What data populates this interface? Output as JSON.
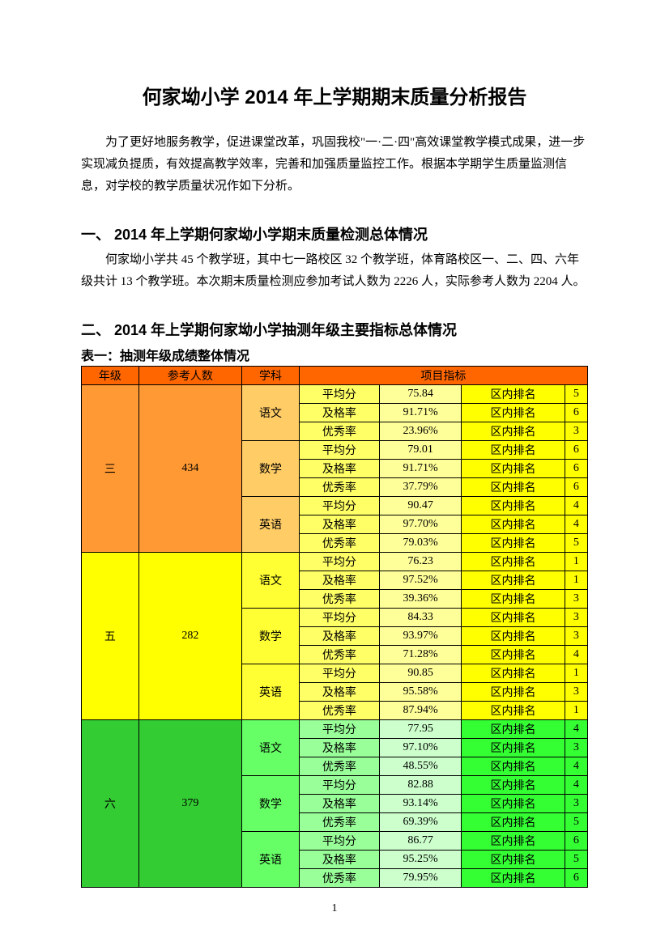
{
  "title": "何家坳小学 2014 年上学期期末质量分析报告",
  "intro": "为了更好地服务教学，促进课堂改革，巩固我校\"一·二·四\"高效课堂教学模式成果，进一步实现减负提质，有效提高教学效率，完善和加强质量监控工作。根据本学期学生质量监测信息，对学校的教学质量状况作如下分析。",
  "section1": {
    "heading": "一、 2014 年上学期何家坳小学期末质量检测总体情况",
    "body": "何家坳小学共 45 个教学班，其中七一路校区 32 个教学班，体育路校区一、二、四、六年级共计 13 个教学班。本次期末质量检测应参加考试人数为 2226 人，实际参考人数为 2204 人。"
  },
  "section2": {
    "heading": "二、 2014 年上学期何家坳小学抽测年级主要指标总体情况",
    "caption": "表一：抽测年级成绩整体情况"
  },
  "table": {
    "header_bg": "#ff6600",
    "header_project_bg": "#ff6600",
    "colors": {
      "grade3": "#ff9933",
      "grade5": "#ffff00",
      "grade6": "#33cc33",
      "subj_orange": "#ffcc66",
      "subj_yellow": "#ffff33",
      "subj_green": "#66ff66",
      "metric_yellow": "#ffff66",
      "metric_green": "#99ff99",
      "val_yellow": "#ffff99",
      "val_green": "#ccffcc",
      "rank_yellow": "#ffff00",
      "rank_green": "#33ff33",
      "ranknum_yellow": "#ffff00",
      "ranknum_green": "#33ff33"
    },
    "headers": {
      "grade": "年级",
      "count": "参考人数",
      "subject": "学科",
      "project": "项目指标"
    },
    "metric_labels": {
      "avg": "平均分",
      "pass": "及格率",
      "excellent": "优秀率"
    },
    "rank_label": "区内排名",
    "grades": [
      {
        "name": "三",
        "count": "434",
        "row_color": "grade3",
        "subjects": [
          {
            "name": "语文",
            "subj_color": "subj_orange",
            "metric_color": "metric_yellow",
            "val_color": "val_yellow",
            "rank_color": "rank_yellow",
            "ranknum_color": "ranknum_yellow",
            "rows": [
              {
                "m": "avg",
                "v": "75.84",
                "r": "5"
              },
              {
                "m": "pass",
                "v": "91.71%",
                "r": "6"
              },
              {
                "m": "excellent",
                "v": "23.96%",
                "r": "3"
              }
            ]
          },
          {
            "name": "数学",
            "subj_color": "subj_orange",
            "metric_color": "metric_yellow",
            "val_color": "val_yellow",
            "rank_color": "rank_yellow",
            "ranknum_color": "ranknum_yellow",
            "rows": [
              {
                "m": "avg",
                "v": "79.01",
                "r": "6"
              },
              {
                "m": "pass",
                "v": "91.71%",
                "r": "6"
              },
              {
                "m": "excellent",
                "v": "37.79%",
                "r": "6"
              }
            ]
          },
          {
            "name": "英语",
            "subj_color": "subj_orange",
            "metric_color": "metric_yellow",
            "val_color": "val_yellow",
            "rank_color": "rank_yellow",
            "ranknum_color": "ranknum_yellow",
            "rows": [
              {
                "m": "avg",
                "v": "90.47",
                "r": "4"
              },
              {
                "m": "pass",
                "v": "97.70%",
                "r": "4"
              },
              {
                "m": "excellent",
                "v": "79.03%",
                "r": "5"
              }
            ]
          }
        ]
      },
      {
        "name": "五",
        "count": "282",
        "row_color": "grade5",
        "subjects": [
          {
            "name": "语文",
            "subj_color": "subj_yellow",
            "metric_color": "metric_yellow",
            "val_color": "val_yellow",
            "rank_color": "rank_yellow",
            "ranknum_color": "ranknum_yellow",
            "rows": [
              {
                "m": "avg",
                "v": "76.23",
                "r": "1"
              },
              {
                "m": "pass",
                "v": "97.52%",
                "r": "1"
              },
              {
                "m": "excellent",
                "v": "39.36%",
                "r": "3"
              }
            ]
          },
          {
            "name": "数学",
            "subj_color": "subj_yellow",
            "metric_color": "metric_yellow",
            "val_color": "val_yellow",
            "rank_color": "rank_yellow",
            "ranknum_color": "ranknum_yellow",
            "rows": [
              {
                "m": "avg",
                "v": "84.33",
                "r": "3"
              },
              {
                "m": "pass",
                "v": "93.97%",
                "r": "3"
              },
              {
                "m": "excellent",
                "v": "71.28%",
                "r": "4"
              }
            ]
          },
          {
            "name": "英语",
            "subj_color": "subj_yellow",
            "metric_color": "metric_yellow",
            "val_color": "val_yellow",
            "rank_color": "rank_yellow",
            "ranknum_color": "ranknum_yellow",
            "rows": [
              {
                "m": "avg",
                "v": "90.85",
                "r": "1"
              },
              {
                "m": "pass",
                "v": "95.58%",
                "r": "3"
              },
              {
                "m": "excellent",
                "v": "87.94%",
                "r": "1"
              }
            ]
          }
        ]
      },
      {
        "name": "六",
        "count": "379",
        "row_color": "grade6",
        "subjects": [
          {
            "name": "语文",
            "subj_color": "subj_green",
            "metric_color": "metric_green",
            "val_color": "val_green",
            "rank_color": "rank_green",
            "ranknum_color": "ranknum_green",
            "rows": [
              {
                "m": "avg",
                "v": "77.95",
                "r": "4"
              },
              {
                "m": "pass",
                "v": "97.10%",
                "r": "3"
              },
              {
                "m": "excellent",
                "v": "48.55%",
                "r": "4"
              }
            ]
          },
          {
            "name": "数学",
            "subj_color": "subj_green",
            "metric_color": "metric_green",
            "val_color": "val_green",
            "rank_color": "rank_green",
            "ranknum_color": "ranknum_green",
            "rows": [
              {
                "m": "avg",
                "v": "82.88",
                "r": "4"
              },
              {
                "m": "pass",
                "v": "93.14%",
                "r": "3"
              },
              {
                "m": "excellent",
                "v": "69.39%",
                "r": "5"
              }
            ]
          },
          {
            "name": "英语",
            "subj_color": "subj_green",
            "metric_color": "metric_green",
            "val_color": "val_green",
            "rank_color": "rank_green",
            "ranknum_color": "ranknum_green",
            "rows": [
              {
                "m": "avg",
                "v": "86.77",
                "r": "6"
              },
              {
                "m": "pass",
                "v": "95.25%",
                "r": "5"
              },
              {
                "m": "excellent",
                "v": "79.95%",
                "r": "6"
              }
            ]
          }
        ]
      }
    ]
  },
  "page_num": "1"
}
